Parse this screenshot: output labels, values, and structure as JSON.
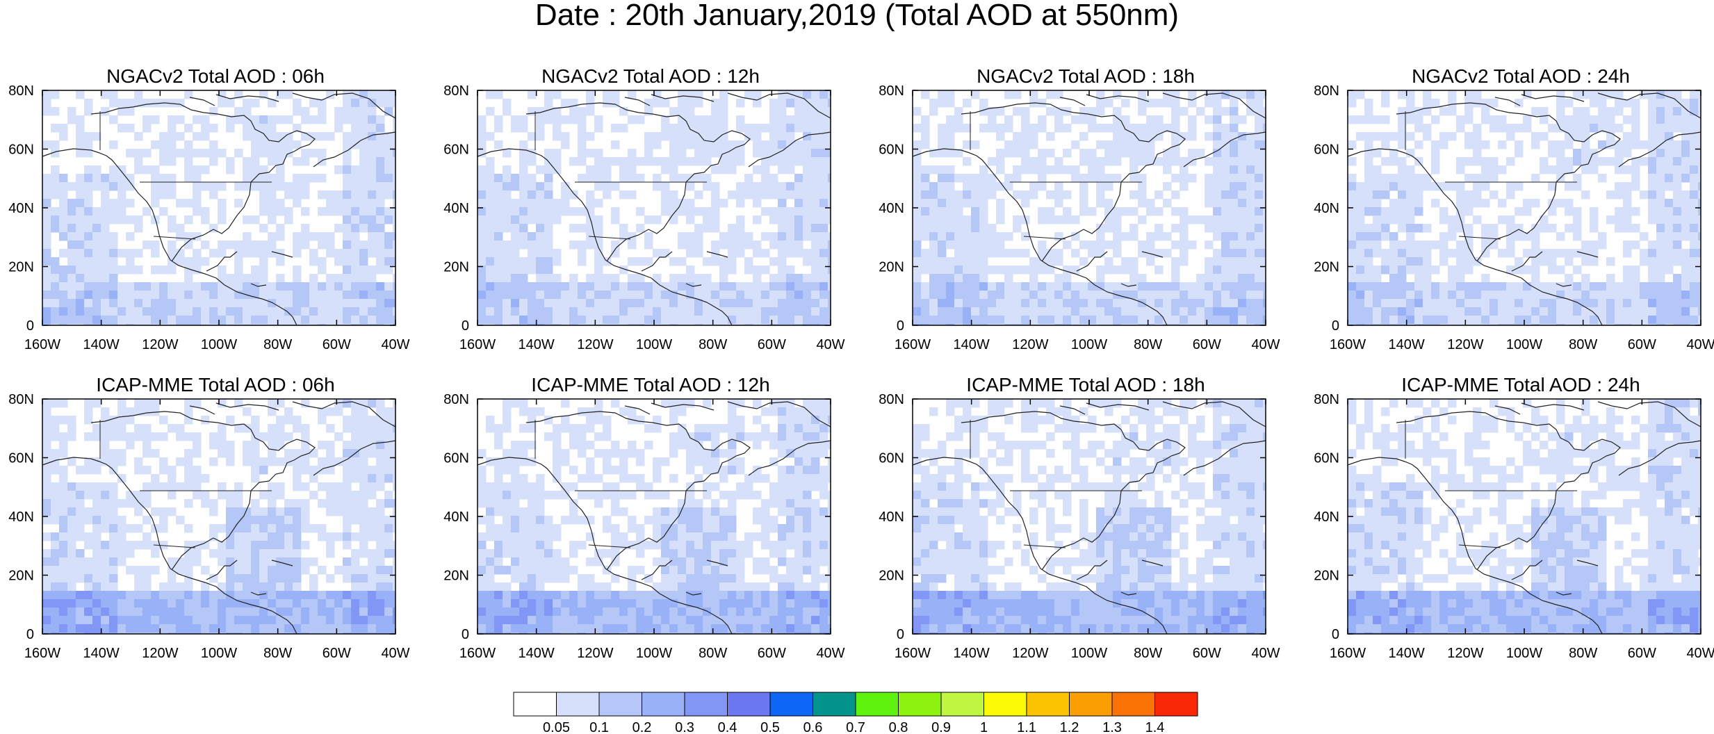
{
  "title": "Date : 20th January,2019 (Total AOD at 550nm)",
  "axes": {
    "lat_labels": [
      "80N",
      "60N",
      "40N",
      "20N",
      "0"
    ],
    "lon_labels": [
      "160W",
      "140W",
      "120W",
      "100W",
      "80W",
      "60W",
      "40W"
    ],
    "lat_range": [
      0,
      80
    ],
    "lon_range": [
      -160,
      -40
    ]
  },
  "panels": [
    {
      "model": "NGACv2",
      "lead": "06h",
      "title": "NGACv2 Total AOD : 06h"
    },
    {
      "model": "NGACv2",
      "lead": "12h",
      "title": "NGACv2 Total AOD : 12h"
    },
    {
      "model": "NGACv2",
      "lead": "18h",
      "title": "NGACv2 Total AOD : 18h"
    },
    {
      "model": "NGACv2",
      "lead": "24h",
      "title": "NGACv2 Total AOD : 24h"
    },
    {
      "model": "ICAP-MME",
      "lead": "06h",
      "title": "ICAP-MME Total AOD : 06h"
    },
    {
      "model": "ICAP-MME",
      "lead": "12h",
      "title": "ICAP-MME Total AOD : 12h"
    },
    {
      "model": "ICAP-MME",
      "lead": "18h",
      "title": "ICAP-MME Total AOD : 18h"
    },
    {
      "model": "ICAP-MME",
      "lead": "24h",
      "title": "ICAP-MME Total AOD : 24h"
    }
  ],
  "colorbar": {
    "labels": [
      "0.05",
      "0.1",
      "0.2",
      "0.3",
      "0.4",
      "0.5",
      "0.6",
      "0.7",
      "0.8",
      "0.9",
      "1",
      "1.1",
      "1.2",
      "1.3",
      "1.4"
    ],
    "colors": [
      "#ffffff",
      "#d6e0fa",
      "#b4c7f7",
      "#99b2f7",
      "#8196f5",
      "#6c78f2",
      "#0e66f7",
      "#02948c",
      "#5ef20e",
      "#8ef20e",
      "#c0f542",
      "#fbfa07",
      "#fbc302",
      "#fb9e02",
      "#fb7304",
      "#fb2808"
    ]
  }
}
